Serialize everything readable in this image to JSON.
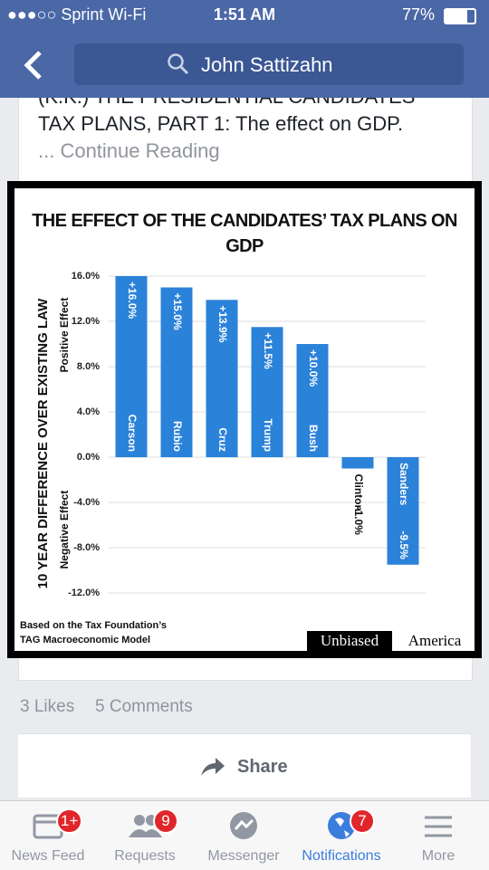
{
  "status": {
    "carrier": "●●●○○ Sprint Wi-Fi",
    "time": "1:51 AM",
    "battery": "77%"
  },
  "search": "John Sattizahn",
  "post": {
    "lines": [
      "(K.K.) THE PRESIDENTIAL CANDIDATES",
      "TAX PLANS, PART 1: The effect on GDP."
    ],
    "more": "... Continue Reading",
    "likes": "3 Likes",
    "comments": "5 Comments",
    "share": "Share"
  },
  "chart_data": {
    "type": "bar",
    "title": "THE EFFECT OF THE CANDIDATES’ TAX PLANS ON GDP",
    "y_label": "10 YEAR DIFFERENCE OVER EXISTING LAW",
    "annotations": [
      "Positive Effect",
      "Negative Effect"
    ],
    "source": [
      "Based on the Tax Foundation’s",
      "TAG Macroeconomic Model"
    ],
    "brand": [
      "Unbiased",
      "America"
    ],
    "categories": [
      "Carson",
      "Rubio",
      "Cruz",
      "Trump",
      "Bush",
      "Clinton",
      "Sanders"
    ],
    "values": [
      16,
      15,
      13.9,
      11.5,
      10,
      -1,
      -9.5
    ],
    "value_labels": [
      "+16.0%",
      "+15.0%",
      "+13.9%",
      "+11.5%",
      "+10.0%",
      "-1.0%",
      "-9.5%"
    ],
    "color": "#2b82d9",
    "ylim": [
      -12,
      16
    ],
    "yticks": [
      {
        "value": 16,
        "label": "16.0%"
      },
      {
        "value": 12,
        "label": "12.0%"
      },
      {
        "value": 8,
        "label": "8.0%"
      },
      {
        "value": 4,
        "label": "4.0%"
      },
      {
        "value": 0,
        "label": "0.0%"
      },
      {
        "value": -4,
        "label": "-4.0%"
      },
      {
        "value": -8,
        "label": "-8.0%"
      },
      {
        "value": -12,
        "label": "-12.0%"
      }
    ],
    "grid": true
  },
  "tabs": [
    {
      "label": "News Feed",
      "badge": "1+"
    },
    {
      "label": "Requests",
      "badge": "9"
    },
    {
      "label": "Messenger"
    },
    {
      "label": "Notifications",
      "badge": "7"
    },
    {
      "label": "More"
    }
  ]
}
